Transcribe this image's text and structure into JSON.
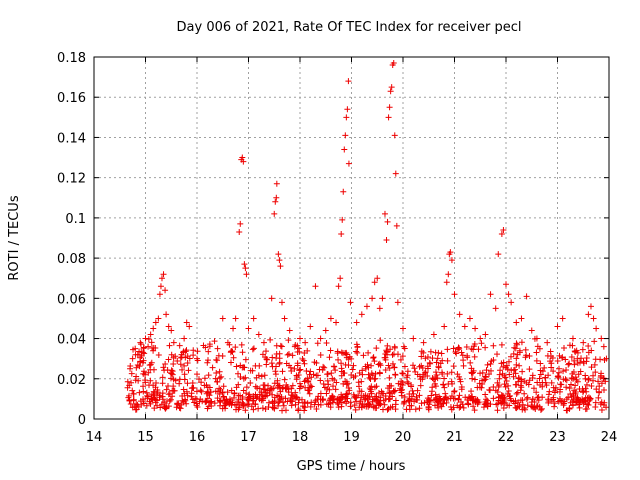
{
  "chart_data": {
    "type": "scatter",
    "title": "Day 006 of 2021, Rate Of TEC Index for receiver pecl",
    "xlabel": "GPS time / hours",
    "ylabel": "ROTI / TECUs",
    "xlim": [
      14,
      24
    ],
    "ylim": [
      0,
      0.18
    ],
    "xticks": [
      14,
      15,
      16,
      17,
      18,
      19,
      20,
      21,
      22,
      23,
      24
    ],
    "xtick_labels": [
      "14",
      "15",
      "16",
      "17",
      "18",
      "19",
      "20",
      "21",
      "22",
      "23",
      "24"
    ],
    "yticks": [
      0,
      0.02,
      0.04,
      0.06,
      0.08,
      0.1,
      0.12,
      0.14,
      0.16,
      0.18
    ],
    "ytick_labels": [
      "0",
      "0.02",
      "0.04",
      "0.06",
      "0.08",
      "0.1",
      "0.12",
      "0.14",
      "0.16",
      "0.18"
    ],
    "grid": true,
    "marker": "+",
    "color": "#ee0000",
    "data_extent": {
      "x_start": 14.65,
      "x_end": 23.95
    },
    "series": [
      {
        "name": "ROTI",
        "points": [
          [
            14.7,
            0.025
          ],
          [
            14.72,
            0.018
          ],
          [
            14.75,
            0.03
          ],
          [
            14.8,
            0.035
          ],
          [
            14.85,
            0.032
          ],
          [
            14.9,
            0.038
          ],
          [
            14.95,
            0.028
          ],
          [
            15.0,
            0.04
          ],
          [
            15.05,
            0.036
          ],
          [
            15.1,
            0.042
          ],
          [
            15.15,
            0.045
          ],
          [
            15.2,
            0.048
          ],
          [
            15.25,
            0.05
          ],
          [
            15.28,
            0.062
          ],
          [
            15.3,
            0.066
          ],
          [
            15.32,
            0.07
          ],
          [
            15.35,
            0.072
          ],
          [
            15.38,
            0.064
          ],
          [
            15.4,
            0.052
          ],
          [
            15.45,
            0.046
          ],
          [
            15.5,
            0.044
          ],
          [
            15.55,
            0.038
          ],
          [
            15.7,
            0.032
          ],
          [
            15.75,
            0.04
          ],
          [
            15.8,
            0.048
          ],
          [
            15.85,
            0.046
          ],
          [
            16.0,
            0.03
          ],
          [
            16.2,
            0.028
          ],
          [
            16.4,
            0.035
          ],
          [
            16.5,
            0.05
          ],
          [
            16.6,
            0.038
          ],
          [
            16.7,
            0.045
          ],
          [
            16.75,
            0.05
          ],
          [
            16.82,
            0.093
          ],
          [
            16.84,
            0.097
          ],
          [
            16.86,
            0.129
          ],
          [
            16.88,
            0.13
          ],
          [
            16.9,
            0.128
          ],
          [
            16.92,
            0.077
          ],
          [
            16.94,
            0.075
          ],
          [
            16.96,
            0.072
          ],
          [
            17.0,
            0.045
          ],
          [
            17.1,
            0.05
          ],
          [
            17.2,
            0.042
          ],
          [
            17.3,
            0.038
          ],
          [
            17.45,
            0.06
          ],
          [
            17.5,
            0.102
          ],
          [
            17.52,
            0.108
          ],
          [
            17.54,
            0.11
          ],
          [
            17.55,
            0.117
          ],
          [
            17.58,
            0.082
          ],
          [
            17.6,
            0.079
          ],
          [
            17.62,
            0.076
          ],
          [
            17.65,
            0.058
          ],
          [
            17.7,
            0.05
          ],
          [
            17.8,
            0.044
          ],
          [
            17.9,
            0.036
          ],
          [
            18.0,
            0.04
          ],
          [
            18.1,
            0.038
          ],
          [
            18.2,
            0.046
          ],
          [
            18.3,
            0.066
          ],
          [
            18.4,
            0.04
          ],
          [
            18.5,
            0.044
          ],
          [
            18.6,
            0.05
          ],
          [
            18.7,
            0.048
          ],
          [
            18.75,
            0.066
          ],
          [
            18.78,
            0.07
          ],
          [
            18.8,
            0.092
          ],
          [
            18.82,
            0.099
          ],
          [
            18.84,
            0.113
          ],
          [
            18.86,
            0.134
          ],
          [
            18.88,
            0.141
          ],
          [
            18.9,
            0.15
          ],
          [
            18.92,
            0.154
          ],
          [
            18.94,
            0.168
          ],
          [
            18.95,
            0.127
          ],
          [
            18.98,
            0.058
          ],
          [
            19.1,
            0.048
          ],
          [
            19.2,
            0.052
          ],
          [
            19.3,
            0.056
          ],
          [
            19.4,
            0.06
          ],
          [
            19.45,
            0.068
          ],
          [
            19.5,
            0.07
          ],
          [
            19.55,
            0.055
          ],
          [
            19.6,
            0.06
          ],
          [
            19.65,
            0.102
          ],
          [
            19.68,
            0.089
          ],
          [
            19.7,
            0.098
          ],
          [
            19.72,
            0.15
          ],
          [
            19.74,
            0.155
          ],
          [
            19.76,
            0.163
          ],
          [
            19.78,
            0.165
          ],
          [
            19.8,
            0.176
          ],
          [
            19.82,
            0.177
          ],
          [
            19.84,
            0.141
          ],
          [
            19.86,
            0.122
          ],
          [
            19.88,
            0.096
          ],
          [
            19.9,
            0.058
          ],
          [
            20.0,
            0.045
          ],
          [
            20.2,
            0.04
          ],
          [
            20.4,
            0.038
          ],
          [
            20.6,
            0.042
          ],
          [
            20.8,
            0.046
          ],
          [
            20.85,
            0.068
          ],
          [
            20.88,
            0.072
          ],
          [
            20.9,
            0.082
          ],
          [
            20.92,
            0.083
          ],
          [
            20.95,
            0.079
          ],
          [
            21.0,
            0.062
          ],
          [
            21.1,
            0.052
          ],
          [
            21.2,
            0.046
          ],
          [
            21.3,
            0.05
          ],
          [
            21.4,
            0.045
          ],
          [
            21.5,
            0.04
          ],
          [
            21.6,
            0.042
          ],
          [
            21.7,
            0.062
          ],
          [
            21.8,
            0.055
          ],
          [
            21.85,
            0.082
          ],
          [
            21.92,
            0.092
          ],
          [
            21.95,
            0.094
          ],
          [
            22.0,
            0.067
          ],
          [
            22.05,
            0.062
          ],
          [
            22.1,
            0.058
          ],
          [
            22.2,
            0.048
          ],
          [
            22.3,
            0.05
          ],
          [
            22.4,
            0.061
          ],
          [
            22.5,
            0.044
          ],
          [
            22.6,
            0.04
          ],
          [
            22.8,
            0.038
          ],
          [
            23.0,
            0.046
          ],
          [
            23.1,
            0.05
          ],
          [
            23.3,
            0.04
          ],
          [
            23.5,
            0.038
          ],
          [
            23.6,
            0.052
          ],
          [
            23.65,
            0.056
          ],
          [
            23.7,
            0.05
          ],
          [
            23.75,
            0.045
          ],
          [
            23.85,
            0.04
          ],
          [
            23.9,
            0.036
          ],
          [
            23.95,
            0.03
          ]
        ]
      }
    ]
  }
}
